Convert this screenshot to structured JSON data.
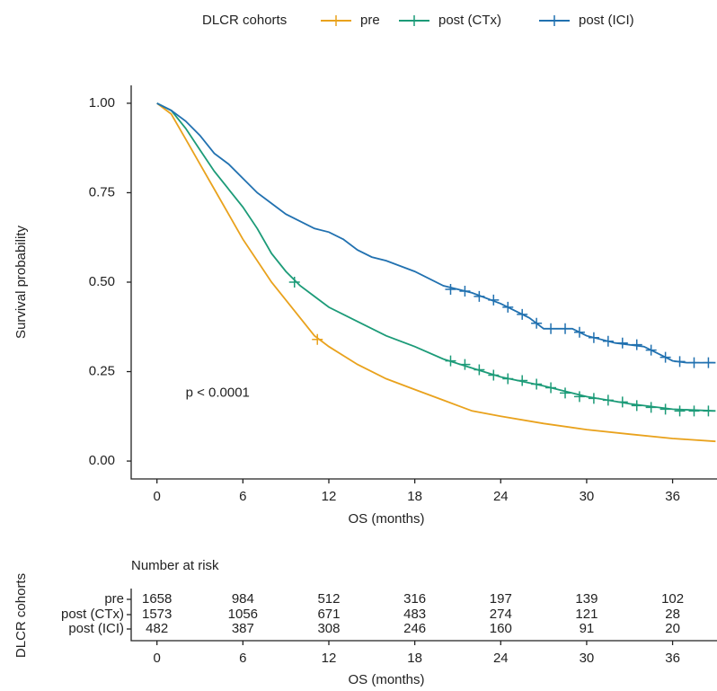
{
  "chart_data": [
    {
      "type": "line",
      "legend_title": "DLCR cohorts",
      "x_label": "OS (months)",
      "y_label": "Survival probability",
      "annotation": "p < 0.0001",
      "annotation_x": 2,
      "annotation_y": 0.19,
      "xlim": [
        -1.8,
        39.1
      ],
      "ylim": [
        -0.05,
        1.05
      ],
      "xticks": [
        0,
        6,
        12,
        18,
        24,
        30,
        36
      ],
      "yticks": [
        {
          "value": 0,
          "label": "0.00"
        },
        {
          "value": 0.25,
          "label": "0.25"
        },
        {
          "value": 0.5,
          "label": "0.50"
        },
        {
          "value": 0.75,
          "label": "0.75"
        },
        {
          "value": 1,
          "label": "1.00"
        }
      ],
      "legend_position": "top",
      "series": [
        {
          "name": "pre",
          "color": "#E9A21D",
          "x": [
            0,
            1,
            2,
            3,
            4,
            5,
            6,
            7,
            8,
            9,
            10,
            11,
            12,
            14,
            16,
            18,
            20,
            22,
            24,
            27,
            30,
            33,
            36,
            39
          ],
          "values": [
            1,
            0.97,
            0.9,
            0.83,
            0.76,
            0.69,
            0.62,
            0.56,
            0.5,
            0.45,
            0.4,
            0.35,
            0.32,
            0.27,
            0.23,
            0.2,
            0.17,
            0.14,
            0.125,
            0.105,
            0.088,
            0.075,
            0.063,
            0.055
          ],
          "censor": {
            "x": [
              11.2
            ],
            "values": [
              0.34
            ]
          }
        },
        {
          "name": "post (CTx)",
          "color": "#1C9B78",
          "x": [
            0,
            1,
            2,
            3,
            4,
            5,
            6,
            7,
            8,
            9,
            10,
            11,
            12,
            14,
            16,
            18,
            20,
            22,
            24,
            27,
            30,
            33,
            36,
            39
          ],
          "values": [
            1,
            0.98,
            0.93,
            0.87,
            0.81,
            0.76,
            0.71,
            0.65,
            0.58,
            0.53,
            0.49,
            0.46,
            0.43,
            0.39,
            0.35,
            0.32,
            0.285,
            0.26,
            0.235,
            0.21,
            0.18,
            0.16,
            0.145,
            0.14
          ],
          "censor": {
            "x": [
              9.6,
              20.5,
              21.5,
              22.5,
              23.5,
              24.5,
              25.5,
              26.5,
              27.5,
              28.5,
              29.5,
              30.5,
              31.5,
              32.5,
              33.5,
              34.5,
              35.5,
              36.5,
              37.5,
              38.5
            ],
            "values": [
              0.5,
              0.28,
              0.27,
              0.255,
              0.24,
              0.23,
              0.225,
              0.215,
              0.205,
              0.19,
              0.18,
              0.175,
              0.17,
              0.165,
              0.155,
              0.15,
              0.145,
              0.14,
              0.14,
              0.14
            ]
          }
        },
        {
          "name": "post (ICI)",
          "color": "#2171B0",
          "x": [
            0,
            1,
            2,
            3,
            4,
            5,
            6,
            7,
            8,
            9,
            10,
            11,
            12,
            13,
            14,
            15,
            16,
            18,
            20,
            22,
            24,
            26,
            27,
            29,
            30,
            32,
            34,
            35,
            36,
            37,
            39
          ],
          "values": [
            1,
            0.98,
            0.95,
            0.91,
            0.86,
            0.83,
            0.79,
            0.75,
            0.72,
            0.69,
            0.67,
            0.65,
            0.64,
            0.62,
            0.59,
            0.57,
            0.56,
            0.53,
            0.49,
            0.47,
            0.44,
            0.4,
            0.37,
            0.37,
            0.35,
            0.33,
            0.32,
            0.3,
            0.28,
            0.275,
            0.275
          ],
          "censor": {
            "x": [
              20.5,
              21.5,
              22.5,
              23.5,
              24.5,
              25.5,
              26.5,
              27.5,
              28.5,
              29.5,
              30.5,
              31.5,
              32.5,
              33.5,
              34.5,
              35.5,
              36.5,
              37.5,
              38.5
            ],
            "values": [
              0.48,
              0.475,
              0.46,
              0.45,
              0.43,
              0.41,
              0.385,
              0.37,
              0.37,
              0.36,
              0.345,
              0.335,
              0.33,
              0.325,
              0.31,
              0.29,
              0.278,
              0.275,
              0.275
            ]
          }
        }
      ]
    },
    {
      "type": "table",
      "title": "Number at risk",
      "x_label": "OS (months)",
      "y_label": "DLCR cohorts",
      "xlim": [
        -1.8,
        39.1
      ],
      "xticks": [
        0,
        6,
        12,
        18,
        24,
        30,
        36
      ],
      "rows": [
        {
          "name": "pre",
          "values": [
            1658,
            984,
            512,
            316,
            197,
            139,
            102
          ]
        },
        {
          "name": "post (CTx)",
          "values": [
            1573,
            1056,
            671,
            483,
            274,
            121,
            28
          ]
        },
        {
          "name": "post (ICI)",
          "values": [
            482,
            387,
            308,
            246,
            160,
            91,
            20
          ]
        }
      ]
    }
  ]
}
